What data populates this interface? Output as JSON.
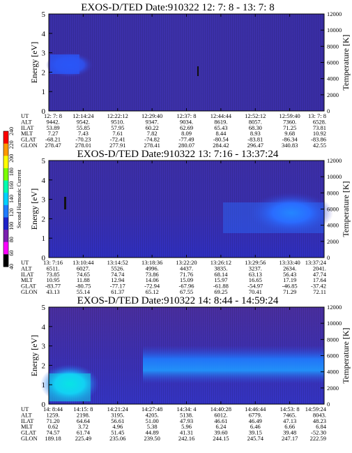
{
  "colorbar": {
    "label": "Second Harmonic Current",
    "ticks": [
      "40",
      "60",
      "80",
      "100",
      "120",
      "140",
      "160",
      "180",
      "200",
      "220",
      "240"
    ],
    "colors": [
      "#000000",
      "#ff00ff",
      "#7c1fb0",
      "#1e22c8",
      "#1f7bff",
      "#00d0ff",
      "#00ffb0",
      "#7cff00",
      "#ffff00",
      "#ff9900",
      "#ff0000"
    ]
  },
  "chart_data": [
    {
      "type": "heatmap",
      "title": "EXOS-D/TED   Date:910322  12: 7: 8 - 13: 7: 8",
      "ylabel": "Energy [eV]",
      "ylabel2": "Temperature [K]",
      "ylim": [
        0,
        5
      ],
      "y2lim": [
        0,
        12000
      ],
      "yticks": [
        "0",
        "1",
        "2",
        "3",
        "4",
        "5"
      ],
      "y2ticks": [
        "0",
        "2000",
        "4000",
        "6000",
        "8000",
        "10000",
        "12000"
      ],
      "row_labels": [
        "UT",
        "ALT",
        "ILAT",
        "MLT",
        "GLAT",
        "GLON"
      ],
      "columns": [
        [
          "12: 7: 8",
          "9442.",
          "53.89",
          "7.27",
          "-68.21",
          "278.47"
        ],
        [
          "12:14:24",
          "9542.",
          "55.85",
          "7.43",
          "-70.23",
          "278.01"
        ],
        [
          "12:22:12",
          "9510.",
          "57.95",
          "7.61",
          "-72.41",
          "277.91"
        ],
        [
          "12:29:40",
          "9347.",
          "60.22",
          "7.82",
          "-74.82",
          "278.41"
        ],
        [
          "12:37: 8",
          "9034.",
          "62.69",
          "8.09",
          "-77.49",
          "280.07"
        ],
        [
          "12:44:44",
          "8619.",
          "65.43",
          "8.44",
          "-80.54",
          "284.42"
        ],
        [
          "12:52:12",
          "8057.",
          "68.30",
          "8.93",
          "-83.81",
          "296.47"
        ],
        [
          "12:59:40",
          "7360.",
          "71.25",
          "9.68",
          "-86.34",
          "340.83"
        ],
        [
          "13: 7: 8",
          "6528.",
          "73.81",
          "10.92",
          "-83.86",
          "42.55"
        ]
      ]
    },
    {
      "type": "heatmap",
      "title": "EXOS-D/TED   Date:910322  13: 7:16 - 13:37:24",
      "ylabel": "Energy [eV]",
      "ylabel2": "Temperature [K]",
      "ylim": [
        0,
        5
      ],
      "y2lim": [
        0,
        12000
      ],
      "yticks": [
        "0",
        "1",
        "2",
        "3",
        "4",
        "5"
      ],
      "y2ticks": [
        "0",
        "2000",
        "4000",
        "6000",
        "8000",
        "10000",
        "12000"
      ],
      "row_labels": [
        "UT",
        "ALT",
        "ILAT",
        "MLT",
        "GLAT",
        "GLON"
      ],
      "columns": [
        [
          "13: 7:16",
          "6511.",
          "73.85",
          "10.95",
          "-83.77",
          "43.13"
        ],
        [
          "13:10:44",
          "6027.",
          "74.65",
          "11.88",
          "-80.75",
          "55.14"
        ],
        [
          "13:14:52",
          "5526.",
          "74.74",
          "12.94",
          "-77.17",
          "61.37"
        ],
        [
          "13:18:36",
          "4996.",
          "73.86",
          "14.06",
          "-72.94",
          "65.12"
        ],
        [
          "13:22:20",
          "4437.",
          "71.76",
          "15.09",
          "-67.96",
          "67.55"
        ],
        [
          "13:26:12",
          "3835.",
          "68.14",
          "15.97",
          "-61.88",
          "69.25"
        ],
        [
          "13:29:56",
          "3237.",
          "63.13",
          "16.65",
          "-54.97",
          "70.41"
        ],
        [
          "13:33:40",
          "2634.",
          "56.43",
          "17.19",
          "-46.85",
          "71.29"
        ],
        [
          "13:37:24",
          "2041.",
          "47.74",
          "17.64",
          "-37.42",
          "72.11"
        ]
      ]
    },
    {
      "type": "heatmap",
      "title": "EXOS-D/TED   Date:910322  14: 8:44 - 14:59:24",
      "ylabel": "Energy [eV]",
      "ylabel2": "Temperature [K]",
      "ylim": [
        0,
        5
      ],
      "y2lim": [
        0,
        12000
      ],
      "yticks": [
        "0",
        "1",
        "2",
        "3",
        "4",
        "5"
      ],
      "y2ticks": [
        "0",
        "2000",
        "4000",
        "6000",
        "8000",
        "10000",
        "12000"
      ],
      "row_labels": [
        "UT",
        "ALT",
        "ILAT",
        "MLT",
        "GLAT",
        "GLON"
      ],
      "columns": [
        [
          "14: 8:44",
          "1259.",
          "71.20",
          "0.62",
          "74.57",
          "189.18"
        ],
        [
          "14:15: 8",
          "2198.",
          "64.64",
          "3.72",
          "61.74",
          "225.49"
        ],
        [
          "14:21:24",
          "3195.",
          "56.61",
          "4.96",
          "51.45",
          "235.06"
        ],
        [
          "14:27:48",
          "4205.",
          "51.00",
          "5.38",
          "44.89",
          "239.50"
        ],
        [
          "14:34: 4",
          "5138.",
          "47.93",
          "5.96",
          "41.31",
          "242.16"
        ],
        [
          "14:40:28",
          "6012.",
          "46.61",
          "6.24",
          "39.60",
          "244.15"
        ],
        [
          "14:46:44",
          "6779.",
          "46.49",
          "6.46",
          "39.15",
          "245.74"
        ],
        [
          "14:53: 8",
          "7465.",
          "47.13",
          "6.66",
          "39.48",
          "247.17"
        ],
        [
          "14:59:24",
          "8043.",
          "48.23",
          "6.84",
          "-52.30",
          "222.59"
        ]
      ]
    }
  ]
}
